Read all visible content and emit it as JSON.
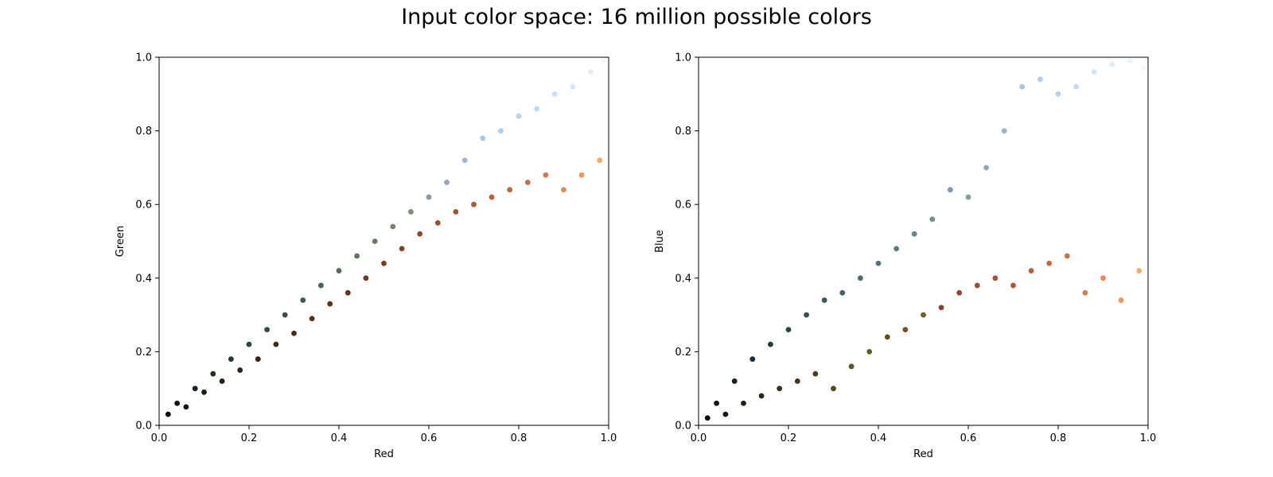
{
  "suptitle": "Input color space: 16 million possible colors",
  "chart_data": [
    {
      "type": "scatter",
      "xlabel": "Red",
      "ylabel": "Green",
      "xlim": [
        0.0,
        1.0
      ],
      "ylim": [
        0.0,
        1.0
      ],
      "xticks": [
        "0.0",
        "0.2",
        "0.4",
        "0.6",
        "0.8",
        "1.0"
      ],
      "yticks": [
        "0.0",
        "0.2",
        "0.4",
        "0.6",
        "0.8",
        "1.0"
      ],
      "grid": false,
      "points": [
        {
          "x": 0.02,
          "y": 0.03,
          "c": "#0c0a08"
        },
        {
          "x": 0.04,
          "y": 0.06,
          "c": "#121410"
        },
        {
          "x": 0.06,
          "y": 0.05,
          "c": "#1a1410"
        },
        {
          "x": 0.08,
          "y": 0.1,
          "c": "#1a2220"
        },
        {
          "x": 0.1,
          "y": 0.09,
          "c": "#201a14"
        },
        {
          "x": 0.12,
          "y": 0.14,
          "c": "#22302c"
        },
        {
          "x": 0.14,
          "y": 0.12,
          "c": "#2a1e16"
        },
        {
          "x": 0.16,
          "y": 0.18,
          "c": "#243a38"
        },
        {
          "x": 0.18,
          "y": 0.15,
          "c": "#32221a"
        },
        {
          "x": 0.2,
          "y": 0.22,
          "c": "#2e4440"
        },
        {
          "x": 0.22,
          "y": 0.18,
          "c": "#3a2218"
        },
        {
          "x": 0.24,
          "y": 0.26,
          "c": "#344a44"
        },
        {
          "x": 0.26,
          "y": 0.22,
          "c": "#42281a"
        },
        {
          "x": 0.28,
          "y": 0.3,
          "c": "#3c5048"
        },
        {
          "x": 0.3,
          "y": 0.25,
          "c": "#4a2a1a"
        },
        {
          "x": 0.32,
          "y": 0.34,
          "c": "#44584c"
        },
        {
          "x": 0.34,
          "y": 0.29,
          "c": "#522e1c"
        },
        {
          "x": 0.36,
          "y": 0.38,
          "c": "#4c6050"
        },
        {
          "x": 0.38,
          "y": 0.33,
          "c": "#5a321e"
        },
        {
          "x": 0.4,
          "y": 0.42,
          "c": "#566a58"
        },
        {
          "x": 0.42,
          "y": 0.36,
          "c": "#623620"
        },
        {
          "x": 0.44,
          "y": 0.46,
          "c": "#60725e"
        },
        {
          "x": 0.46,
          "y": 0.4,
          "c": "#6c3a22"
        },
        {
          "x": 0.48,
          "y": 0.5,
          "c": "#6a7a66"
        },
        {
          "x": 0.5,
          "y": 0.44,
          "c": "#763e24"
        },
        {
          "x": 0.52,
          "y": 0.54,
          "c": "#74826e"
        },
        {
          "x": 0.54,
          "y": 0.48,
          "c": "#804428"
        },
        {
          "x": 0.56,
          "y": 0.58,
          "c": "#7e8c7a"
        },
        {
          "x": 0.58,
          "y": 0.52,
          "c": "#8a4a2c"
        },
        {
          "x": 0.6,
          "y": 0.62,
          "c": "#8a98a6"
        },
        {
          "x": 0.62,
          "y": 0.55,
          "c": "#945030"
        },
        {
          "x": 0.64,
          "y": 0.66,
          "c": "#94a6b8"
        },
        {
          "x": 0.66,
          "y": 0.58,
          "c": "#9e5634"
        },
        {
          "x": 0.68,
          "y": 0.72,
          "c": "#9cb4d6"
        },
        {
          "x": 0.7,
          "y": 0.6,
          "c": "#a85c38"
        },
        {
          "x": 0.72,
          "y": 0.78,
          "c": "#a8c4e8"
        },
        {
          "x": 0.74,
          "y": 0.62,
          "c": "#b2623c"
        },
        {
          "x": 0.76,
          "y": 0.8,
          "c": "#b0ccf0"
        },
        {
          "x": 0.78,
          "y": 0.64,
          "c": "#bc6a40"
        },
        {
          "x": 0.8,
          "y": 0.84,
          "c": "#b8d2f4"
        },
        {
          "x": 0.82,
          "y": 0.66,
          "c": "#c47048"
        },
        {
          "x": 0.84,
          "y": 0.86,
          "c": "#c2d8f6"
        },
        {
          "x": 0.86,
          "y": 0.68,
          "c": "#d47a52"
        },
        {
          "x": 0.88,
          "y": 0.9,
          "c": "#cce0fa"
        },
        {
          "x": 0.9,
          "y": 0.64,
          "c": "#e08a5a"
        },
        {
          "x": 0.92,
          "y": 0.92,
          "c": "#d6e6fc"
        },
        {
          "x": 0.94,
          "y": 0.68,
          "c": "#ec9a60"
        },
        {
          "x": 0.96,
          "y": 0.96,
          "c": "#e2eefe"
        },
        {
          "x": 0.98,
          "y": 0.72,
          "c": "#f4a866"
        },
        {
          "x": 0.99,
          "y": 0.99,
          "c": "#f2f6fe"
        }
      ]
    },
    {
      "type": "scatter",
      "xlabel": "Red",
      "ylabel": "Blue",
      "xlim": [
        0.0,
        1.0
      ],
      "ylim": [
        0.0,
        1.0
      ],
      "xticks": [
        "0.0",
        "0.2",
        "0.4",
        "0.6",
        "0.8",
        "1.0"
      ],
      "yticks": [
        "0.0",
        "0.2",
        "0.4",
        "0.6",
        "0.8",
        "1.0"
      ],
      "grid": false,
      "points": [
        {
          "x": 0.02,
          "y": 0.02,
          "c": "#0c0c0a"
        },
        {
          "x": 0.04,
          "y": 0.06,
          "c": "#0e1414"
        },
        {
          "x": 0.06,
          "y": 0.03,
          "c": "#181612"
        },
        {
          "x": 0.08,
          "y": 0.12,
          "c": "#142222"
        },
        {
          "x": 0.1,
          "y": 0.06,
          "c": "#22201a"
        },
        {
          "x": 0.12,
          "y": 0.18,
          "c": "#1c2e30"
        },
        {
          "x": 0.14,
          "y": 0.08,
          "c": "#2c2818"
        },
        {
          "x": 0.16,
          "y": 0.22,
          "c": "#223a3c"
        },
        {
          "x": 0.18,
          "y": 0.1,
          "c": "#36301c"
        },
        {
          "x": 0.2,
          "y": 0.26,
          "c": "#2a4446"
        },
        {
          "x": 0.22,
          "y": 0.12,
          "c": "#40381e"
        },
        {
          "x": 0.24,
          "y": 0.3,
          "c": "#325052"
        },
        {
          "x": 0.26,
          "y": 0.14,
          "c": "#4a4020"
        },
        {
          "x": 0.28,
          "y": 0.34,
          "c": "#3a5c5c"
        },
        {
          "x": 0.3,
          "y": 0.1,
          "c": "#524a1e"
        },
        {
          "x": 0.32,
          "y": 0.36,
          "c": "#426466"
        },
        {
          "x": 0.34,
          "y": 0.16,
          "c": "#5c5222"
        },
        {
          "x": 0.36,
          "y": 0.4,
          "c": "#4a6c6e"
        },
        {
          "x": 0.38,
          "y": 0.2,
          "c": "#645a26"
        },
        {
          "x": 0.4,
          "y": 0.44,
          "c": "#527476"
        },
        {
          "x": 0.42,
          "y": 0.24,
          "c": "#6a4a28"
        },
        {
          "x": 0.44,
          "y": 0.48,
          "c": "#5a7c80"
        },
        {
          "x": 0.46,
          "y": 0.26,
          "c": "#74502a"
        },
        {
          "x": 0.48,
          "y": 0.52,
          "c": "#64848a"
        },
        {
          "x": 0.5,
          "y": 0.3,
          "c": "#7c562c"
        },
        {
          "x": 0.52,
          "y": 0.56,
          "c": "#6e8c94"
        },
        {
          "x": 0.54,
          "y": 0.32,
          "c": "#86422a"
        },
        {
          "x": 0.56,
          "y": 0.64,
          "c": "#789aa8"
        },
        {
          "x": 0.58,
          "y": 0.36,
          "c": "#90482c"
        },
        {
          "x": 0.6,
          "y": 0.62,
          "c": "#84a0a2"
        },
        {
          "x": 0.62,
          "y": 0.38,
          "c": "#9a4e30"
        },
        {
          "x": 0.64,
          "y": 0.7,
          "c": "#8ea8b0"
        },
        {
          "x": 0.66,
          "y": 0.4,
          "c": "#a45434"
        },
        {
          "x": 0.68,
          "y": 0.8,
          "c": "#98b4c8"
        },
        {
          "x": 0.7,
          "y": 0.38,
          "c": "#ae5a38"
        },
        {
          "x": 0.72,
          "y": 0.92,
          "c": "#a6c6ec"
        },
        {
          "x": 0.74,
          "y": 0.42,
          "c": "#b8603c"
        },
        {
          "x": 0.76,
          "y": 0.94,
          "c": "#b0ccf0"
        },
        {
          "x": 0.78,
          "y": 0.44,
          "c": "#c26840"
        },
        {
          "x": 0.8,
          "y": 0.9,
          "c": "#bcd0e8"
        },
        {
          "x": 0.82,
          "y": 0.46,
          "c": "#cc7048"
        },
        {
          "x": 0.84,
          "y": 0.92,
          "c": "#c8d8ee"
        },
        {
          "x": 0.86,
          "y": 0.36,
          "c": "#d87a50"
        },
        {
          "x": 0.88,
          "y": 0.96,
          "c": "#d4e2f4"
        },
        {
          "x": 0.9,
          "y": 0.4,
          "c": "#e48858"
        },
        {
          "x": 0.92,
          "y": 0.98,
          "c": "#e0ecfa"
        },
        {
          "x": 0.94,
          "y": 0.34,
          "c": "#ee9860"
        },
        {
          "x": 0.96,
          "y": 0.99,
          "c": "#eaf2fc"
        },
        {
          "x": 0.98,
          "y": 0.42,
          "c": "#f6aa68"
        },
        {
          "x": 0.99,
          "y": 0.97,
          "c": "#f4f7fd"
        }
      ]
    }
  ]
}
